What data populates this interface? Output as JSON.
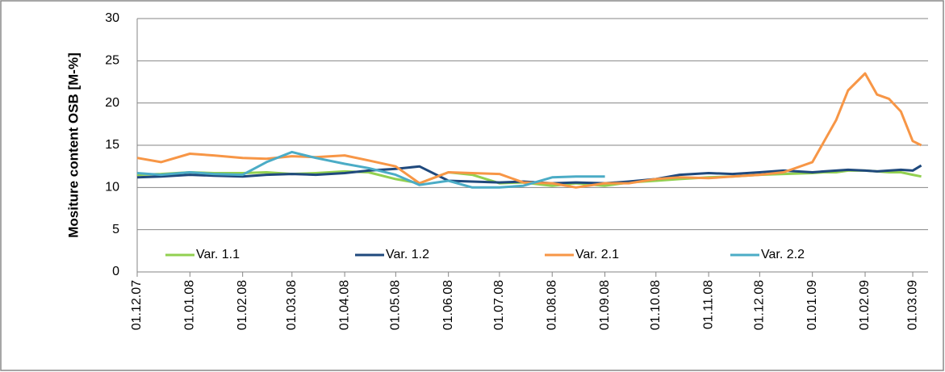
{
  "chart_data": {
    "type": "line",
    "y_label": "Mositure content OSB [M-%]",
    "x": [
      "01.12.07",
      "15.12.07",
      "01.01.08",
      "15.01.08",
      "01.02.08",
      "15.02.08",
      "01.03.08",
      "15.03.08",
      "01.04.08",
      "15.04.08",
      "01.05.08",
      "15.05.08",
      "01.06.08",
      "15.06.08",
      "01.07.08",
      "15.07.08",
      "01.08.08",
      "15.08.08",
      "01.09.08",
      "15.09.08",
      "01.10.08",
      "15.10.08",
      "01.11.08",
      "15.11.08",
      "01.12.08",
      "15.12.08",
      "01.01.09",
      "08.01.09",
      "15.01.09",
      "22.01.09",
      "01.02.09",
      "08.02.09",
      "15.02.09",
      "22.02.09",
      "01.03.09",
      "06.03.09"
    ],
    "series": [
      {
        "name": "Var. 1.1",
        "color": "#92d050",
        "values": [
          11.5,
          11.6,
          11.8,
          11.7,
          11.7,
          11.8,
          11.6,
          11.7,
          11.9,
          11.8,
          11.0,
          10.5,
          11.8,
          11.5,
          10.5,
          10.6,
          10.2,
          10.5,
          10.2,
          10.6,
          10.8,
          11.0,
          11.2,
          11.3,
          11.5,
          11.6,
          11.7,
          11.8,
          11.8,
          12.0,
          12.0,
          11.9,
          11.8,
          11.8,
          11.5,
          11.3
        ]
      },
      {
        "name": "Var. 1.2",
        "color": "#1f497d",
        "values": [
          11.2,
          11.3,
          11.5,
          11.4,
          11.3,
          11.5,
          11.6,
          11.5,
          11.7,
          12.0,
          12.2,
          12.5,
          10.8,
          10.7,
          10.6,
          10.7,
          10.5,
          10.6,
          10.5,
          10.7,
          11.0,
          11.5,
          11.7,
          11.6,
          11.8,
          12.0,
          11.8,
          11.9,
          12.0,
          12.1,
          12.0,
          11.9,
          12.0,
          12.1,
          12.0,
          12.6
        ]
      },
      {
        "name": "Var. 2.1",
        "color": "#f79646",
        "values": [
          13.5,
          13.0,
          14.0,
          13.8,
          13.5,
          13.4,
          13.7,
          13.6,
          13.8,
          13.2,
          12.5,
          10.5,
          11.8,
          11.7,
          11.6,
          10.6,
          10.5,
          10.0,
          10.5,
          10.5,
          11.0,
          11.2,
          11.1,
          11.3,
          11.5,
          11.8,
          13.0,
          15.5,
          18.0,
          21.5,
          23.5,
          21.0,
          20.5,
          19.0,
          15.5,
          15.0
        ]
      },
      {
        "name": "Var. 2.2",
        "color": "#4bacc6",
        "values": [
          11.7,
          11.5,
          11.8,
          11.6,
          11.5,
          13.0,
          14.2,
          13.5,
          12.8,
          12.3,
          11.5,
          10.3,
          10.8,
          10.0,
          10.0,
          10.2,
          11.2,
          11.3,
          11.3,
          null,
          null,
          null,
          null,
          null,
          null,
          null,
          null,
          null,
          null,
          null,
          null,
          null,
          null,
          null,
          null,
          null
        ]
      }
    ],
    "xlim": [
      "01.12.07",
      "10.03.09"
    ],
    "xticks": [
      "01.12.07",
      "01.01.08",
      "01.02.08",
      "01.03.08",
      "01.04.08",
      "01.05.08",
      "01.06.08",
      "01.07.08",
      "01.08.08",
      "01.09.08",
      "01.10.08",
      "01.11.08",
      "01.12.08",
      "01.01.09",
      "01.02.09",
      "01.03.09"
    ],
    "ylim": [
      0,
      30
    ],
    "yticks": [
      0,
      5,
      10,
      15,
      20,
      25,
      30
    ],
    "grid": true,
    "legend": "bottom"
  }
}
